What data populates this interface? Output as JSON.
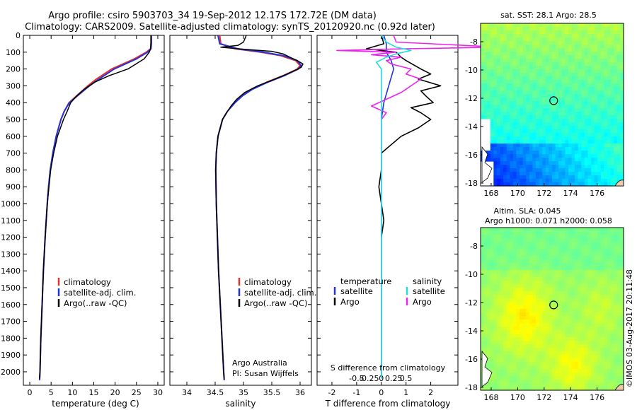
{
  "title": {
    "line1": "Argo profile: csiro 5903703_34 19-Sep-2012 12.17S 172.72E (DM data)",
    "line2": "Climatology: CARS2009. Satellite-adjusted climatology: synTS_20120920.nc (0.92d later)"
  },
  "colors": {
    "climatology": "#e8302a",
    "satellite": "#2233dd",
    "argo": "#000000",
    "sal_satellite": "#22dddd",
    "sal_argo": "#ee22ee"
  },
  "depth_axis": {
    "min": 0,
    "max": 2080,
    "ticks": [
      0,
      100,
      200,
      300,
      400,
      500,
      600,
      700,
      800,
      900,
      1000,
      1100,
      1200,
      1300,
      1400,
      1500,
      1600,
      1700,
      1800,
      1900,
      2000
    ]
  },
  "chart_data": [
    {
      "type": "line",
      "name_key": "temperature",
      "xlabel": "temperature (deg C)",
      "xlim": [
        -1.5,
        31.5
      ],
      "xticks": [
        0,
        5,
        10,
        15,
        20,
        25,
        30
      ],
      "xtick_labels": [
        "0",
        "5",
        "10",
        "15",
        "20",
        "25",
        "30"
      ],
      "legend": [
        "climatology",
        "satellite-adj. clim.",
        "Argo(..raw -QC)"
      ],
      "series": [
        {
          "role": "climatology",
          "depth": [
            0,
            50,
            80,
            100,
            140,
            200,
            260,
            300,
            350,
            400,
            450,
            500,
            600,
            700,
            800,
            900,
            1000,
            1200,
            1400,
            1600,
            1800,
            2000,
            2050
          ],
          "values": [
            28.4,
            28.4,
            28.3,
            27.3,
            24.5,
            19.2,
            15.6,
            13.6,
            11.4,
            9.2,
            8.1,
            7.3,
            6.2,
            5.4,
            4.8,
            4.4,
            4.1,
            3.6,
            3.2,
            2.9,
            2.6,
            2.4,
            2.3
          ]
        },
        {
          "role": "satellite",
          "depth": [
            0,
            50,
            80,
            100,
            140,
            200,
            260,
            300,
            350,
            400,
            450,
            500,
            600,
            700,
            800,
            900,
            1000,
            1200,
            1400,
            1600,
            1800,
            2000,
            2050
          ],
          "values": [
            28.5,
            28.5,
            28.4,
            27.6,
            25.0,
            19.8,
            16.2,
            14.0,
            11.6,
            9.3,
            8.1,
            7.3,
            6.2,
            5.4,
            4.8,
            4.4,
            4.1,
            3.6,
            3.2,
            2.9,
            2.6,
            2.4,
            2.3
          ]
        },
        {
          "role": "argo",
          "depth": [
            0,
            40,
            80,
            100,
            140,
            200,
            240,
            280,
            320,
            360,
            400,
            450,
            500,
            600,
            700,
            800,
            900,
            1000,
            1200,
            1400,
            1600,
            1800,
            2000,
            2040
          ],
          "values": [
            28.4,
            28.4,
            28.3,
            28.0,
            26.8,
            23.0,
            18.6,
            15.1,
            12.8,
            11.0,
            9.6,
            8.8,
            7.9,
            6.5,
            5.6,
            4.9,
            4.5,
            4.1,
            3.6,
            3.2,
            2.9,
            2.6,
            2.4,
            2.3
          ]
        }
      ]
    },
    {
      "type": "line",
      "name_key": "salinity",
      "xlabel": "salinity",
      "xlim": [
        33.7,
        36.2
      ],
      "xticks": [
        34,
        34.5,
        35,
        35.5,
        36
      ],
      "xtick_labels": [
        "34",
        "34.5",
        "35",
        "35.5",
        "36"
      ],
      "legend": [
        "climatology",
        "satellite-adj. clim.",
        "Argo(..raw -QC)"
      ],
      "footer": [
        "Argo Australia",
        "PI: Susan Wijffels"
      ],
      "series": [
        {
          "role": "climatology",
          "depth": [
            0,
            50,
            80,
            100,
            120,
            150,
            180,
            200,
            240,
            280,
            320,
            360,
            400,
            450,
            500,
            600,
            700,
            800,
            1000,
            1200,
            1400,
            1600,
            1800,
            2000,
            2050
          ],
          "values": [
            34.58,
            34.6,
            34.85,
            35.3,
            35.65,
            35.92,
            36.0,
            35.95,
            35.7,
            35.4,
            35.15,
            34.97,
            34.85,
            34.72,
            34.63,
            34.55,
            34.52,
            34.51,
            34.52,
            34.54,
            34.56,
            34.59,
            34.62,
            34.65,
            34.66
          ]
        },
        {
          "role": "satellite",
          "depth": [
            0,
            50,
            80,
            100,
            120,
            150,
            180,
            200,
            240,
            280,
            320,
            360,
            400,
            450,
            500,
            600,
            700,
            800,
            1000,
            1200,
            1400,
            1600,
            1800,
            2000,
            2050
          ],
          "values": [
            34.55,
            34.58,
            34.9,
            35.35,
            35.7,
            35.95,
            36.02,
            35.97,
            35.72,
            35.42,
            35.16,
            34.98,
            34.85,
            34.72,
            34.63,
            34.55,
            34.52,
            34.51,
            34.52,
            34.54,
            34.56,
            34.59,
            34.62,
            34.65,
            34.66
          ]
        },
        {
          "role": "argo",
          "depth": [
            0,
            40,
            60,
            70,
            80,
            95,
            110,
            130,
            150,
            170,
            190,
            210,
            240,
            270,
            300,
            340,
            380,
            420,
            460,
            500,
            600,
            700,
            800,
            1000,
            1200,
            1400,
            1600,
            1800,
            2000,
            2040
          ],
          "values": [
            35.05,
            35.0,
            34.9,
            34.6,
            34.9,
            35.5,
            35.7,
            35.82,
            35.95,
            36.05,
            36.02,
            35.9,
            35.7,
            35.48,
            35.25,
            35.02,
            34.88,
            34.78,
            34.7,
            34.63,
            34.55,
            34.52,
            34.51,
            34.52,
            34.54,
            34.56,
            34.59,
            34.62,
            34.65,
            34.66
          ]
        }
      ]
    },
    {
      "type": "line",
      "name_key": "differences",
      "xlabel": "T difference from climatology",
      "xlim": [
        -2.6,
        3.1
      ],
      "xticks": [
        -2,
        -1,
        0,
        1,
        2
      ],
      "xtick_labels": [
        "-2",
        "-1",
        "0",
        "1",
        "2"
      ],
      "top_label": "S difference from climatology",
      "sxticks": [
        -0.5,
        -0.25,
        0,
        0.25,
        0.5
      ],
      "sxtick_labels": [
        "-0.5",
        "-0.25",
        "0",
        "0.25",
        "0.5"
      ],
      "legend_left_title": "temperature",
      "legend_right_title": "salinity",
      "legend_left": [
        "satellite",
        "Argo"
      ],
      "legend_right": [
        "satellite",
        "Argo"
      ],
      "series": [
        {
          "role": "argo_T",
          "depth": [
            0,
            50,
            80,
            100,
            130,
            150,
            200,
            230,
            260,
            300,
            330,
            360,
            400,
            430,
            460,
            500,
            550,
            600,
            650,
            700,
            800,
            900,
            1000,
            1100,
            1200,
            1400,
            1600,
            1800,
            2000,
            2040
          ],
          "values": [
            0.0,
            0.1,
            -0.6,
            0.6,
            0.8,
            1.0,
            1.6,
            2.0,
            1.5,
            2.4,
            1.6,
            1.8,
            2.1,
            1.2,
            1.6,
            2.0,
            1.5,
            0.8,
            0.4,
            0.0,
            0.0,
            -0.1,
            0.0,
            0.1,
            0.0,
            0.0,
            0.0,
            0.0,
            0.0,
            0.0
          ]
        },
        {
          "role": "satellite_T",
          "depth": [
            0,
            50,
            100,
            150,
            200,
            300,
            400,
            500,
            600,
            800,
            1000,
            1500,
            2040
          ],
          "values": [
            0.1,
            0.2,
            0.2,
            0.4,
            0.5,
            0.3,
            0.1,
            0.0,
            0.0,
            0.0,
            0.0,
            0.0,
            0.0
          ]
        },
        {
          "role": "argo_S",
          "depth": [
            0,
            40,
            70,
            80,
            90,
            100,
            115,
            130,
            150,
            170,
            200,
            230,
            260,
            300,
            340,
            380,
            420,
            460,
            500,
            600,
            800,
            1000,
            2040
          ],
          "values": [
            0.25,
            0.3,
            2.4,
            0.5,
            -0.9,
            0.3,
            -0.2,
            0.4,
            0.1,
            0.2,
            0.6,
            0.5,
            0.8,
            0.6,
            0.4,
            0.1,
            -0.2,
            0.1,
            0.0,
            0.0,
            0.0,
            0.0,
            0.0
          ]
        },
        {
          "role": "satellite_S",
          "depth": [
            0,
            40,
            70,
            90,
            110,
            130,
            160,
            200,
            300,
            400,
            500,
            600,
            800,
            1000,
            2040
          ],
          "values": [
            0.0,
            0.1,
            0.3,
            0.6,
            0.3,
            0.1,
            -0.1,
            0.0,
            0.0,
            0.0,
            0.0,
            0.0,
            0.0,
            0.0,
            0.0
          ]
        }
      ]
    },
    {
      "type": "heatmap",
      "name_key": "sst_map",
      "title": "sat. SST: 28.1  Argo: 28.5",
      "xlim": [
        167.2,
        178.0
      ],
      "ylim": [
        -18.2,
        -6.7
      ],
      "xticks": [
        168,
        170,
        172,
        174,
        176
      ],
      "yticks": [
        -8,
        -10,
        -12,
        -14,
        -16,
        -18
      ],
      "marker": {
        "lon": 172.72,
        "lat": -12.17
      }
    },
    {
      "type": "heatmap",
      "name_key": "sla_map",
      "title": "Altim. SLA: 0.045",
      "subtitle": "Argo h1000: 0.071 h2000: 0.058",
      "xlim": [
        167.2,
        178.0
      ],
      "ylim": [
        -18.2,
        -6.7
      ],
      "xticks": [
        168,
        170,
        172,
        174,
        176
      ],
      "yticks": [
        -8,
        -10,
        -12,
        -14,
        -16,
        -18
      ],
      "marker": {
        "lon": 172.72,
        "lat": -12.17
      }
    }
  ],
  "credit": "©IMOS 03-Aug-2017 20:11:48"
}
